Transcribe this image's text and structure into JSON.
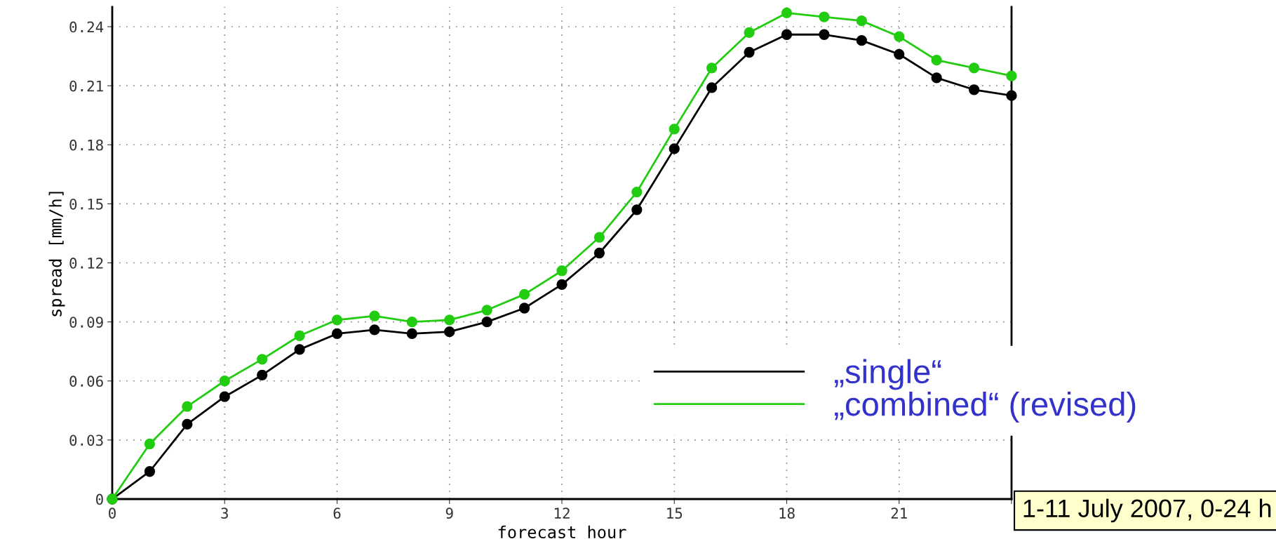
{
  "chart_data": {
    "type": "line",
    "xlabel": "forecast hour",
    "ylabel": "spread [mm/h]",
    "x": [
      0,
      1,
      2,
      3,
      4,
      5,
      6,
      7,
      8,
      9,
      10,
      11,
      12,
      13,
      14,
      15,
      16,
      17,
      18,
      19,
      20,
      21,
      22,
      23,
      24
    ],
    "series": [
      {
        "name": "„single“",
        "color": "#000000",
        "marker": "circle",
        "values": [
          0,
          0.014,
          0.038,
          0.052,
          0.063,
          0.076,
          0.084,
          0.086,
          0.084,
          0.085,
          0.09,
          0.097,
          0.109,
          0.125,
          0.147,
          0.178,
          0.209,
          0.227,
          0.236,
          0.236,
          0.233,
          0.226,
          0.214,
          0.208,
          0.205
        ]
      },
      {
        "name": "„combined“ (revised)",
        "color": "#22cc11",
        "marker": "circle",
        "values": [
          0,
          0.028,
          0.047,
          0.06,
          0.071,
          0.083,
          0.091,
          0.093,
          0.09,
          0.091,
          0.096,
          0.104,
          0.116,
          0.133,
          0.156,
          0.188,
          0.219,
          0.237,
          0.247,
          0.245,
          0.243,
          0.235,
          0.223,
          0.219,
          0.215
        ]
      }
    ],
    "xlim": [
      0,
      24
    ],
    "xticks": [
      0,
      3,
      6,
      9,
      12,
      15,
      18,
      21,
      {
        "value": 24,
        "label": null
      }
    ],
    "ylim": [
      0,
      0.25
    ],
    "yticks": [
      0,
      0.03,
      0.06,
      0.09,
      0.12,
      0.15,
      0.18,
      0.21,
      0.24
    ],
    "grid": true,
    "legend": "bottom right",
    "line_style": "solid",
    "annotations": [
      "1-11 July 2007, 0-24 h"
    ]
  }
}
